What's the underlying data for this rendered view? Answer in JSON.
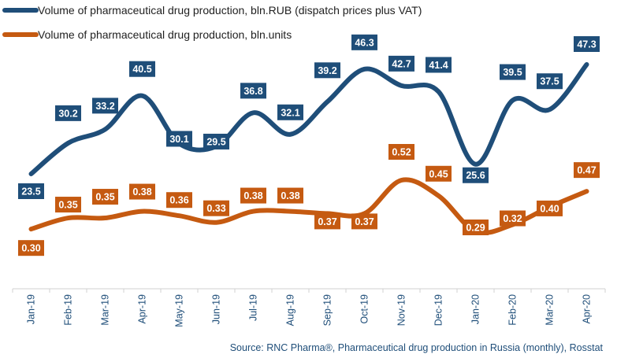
{
  "chart_data": {
    "type": "line",
    "title": "",
    "xlabel": "",
    "ylabel": "",
    "categories": [
      "Jan-19",
      "Feb-19",
      "Mar-19",
      "Apr-19",
      "May-19",
      "Jun-19",
      "Jul-19",
      "Aug-19",
      "Sep-19",
      "Oct-19",
      "Nov-19",
      "Dec-19",
      "Jan-20",
      "Feb-20",
      "Mar-20",
      "Apr-20"
    ],
    "series": [
      {
        "name": "Volume of pharmaceutical drug production, bln.RUB (dispatch prices plus VAT)",
        "color": "#1f4e79",
        "values": [
          23.5,
          30.2,
          33.2,
          40.5,
          30.1,
          29.5,
          36.8,
          32.1,
          39.2,
          46.3,
          42.7,
          41.4,
          25.6,
          39.5,
          37.5,
          47.3
        ],
        "labels": [
          "23.5",
          "30.2",
          "33.2",
          "40.5",
          "30.1",
          "29.5",
          "36.8",
          "32.1",
          "39.2",
          "46.3",
          "42.7",
          "41.4",
          "25.6",
          "39.5",
          "37.5",
          "47.3"
        ]
      },
      {
        "name": "Volume of pharmaceutical drug production, bln.units",
        "color": "#c55a11",
        "values": [
          0.3,
          0.35,
          0.35,
          0.38,
          0.36,
          0.33,
          0.38,
          0.38,
          0.37,
          0.37,
          0.52,
          0.45,
          0.29,
          0.32,
          0.4,
          0.47
        ],
        "labels": [
          "0.30",
          "0.35",
          "0.35",
          "0.38",
          "0.36",
          "0.33",
          "0.38",
          "0.38",
          "0.37",
          "0.37",
          "0.52",
          "0.45",
          "0.29",
          "0.32",
          "0.40",
          "0.47"
        ]
      }
    ],
    "legend_position": "top-left",
    "grid": false
  },
  "source": "Source: RNC Pharma®,  Pharmaceutical drug production in Russia (monthly), Rosstat"
}
